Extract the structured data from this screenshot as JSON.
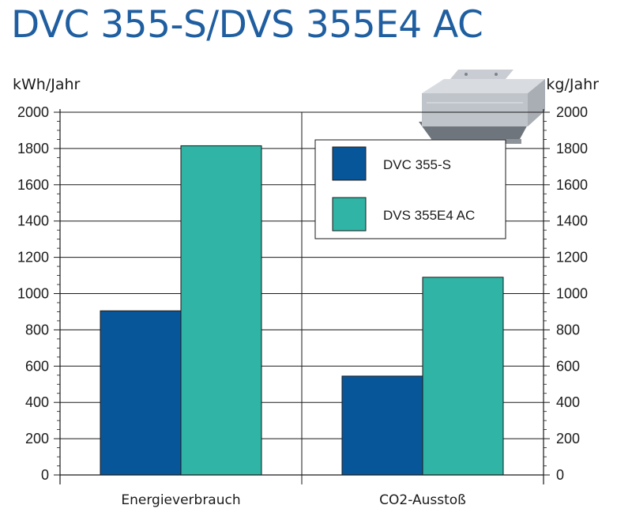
{
  "title": "DVC 355-S/DVS 355E4 AC",
  "chart_data": {
    "type": "bar",
    "title": "DVC 355-S/DVS 355E4 AC",
    "categories": [
      "Energieverbrauch",
      "CO2-Ausstoß"
    ],
    "series": [
      {
        "name": "DVC 355-S",
        "values": [
          905,
          545
        ]
      },
      {
        "name": "DVS 355E4 AC",
        "values": [
          1815,
          1090
        ]
      }
    ],
    "y_left": {
      "label": "kWh/Jahr",
      "ylim": [
        0,
        2000
      ],
      "ticks": [
        "0",
        "200",
        "400",
        "600",
        "800",
        "1000",
        "1200",
        "1400",
        "1600",
        "1800",
        "2000"
      ]
    },
    "y_right": {
      "label": "kg/Jahr",
      "ylim": [
        0,
        2000
      ],
      "ticks": [
        "0",
        "200",
        "400",
        "600",
        "800",
        "1000",
        "1200",
        "1400",
        "1600",
        "1800",
        "2000"
      ]
    },
    "grid": true,
    "legend_position": "top-right",
    "colors": {
      "DVC 355-S": "#08569a",
      "DVS 355E4 AC": "#30b4a5"
    }
  }
}
